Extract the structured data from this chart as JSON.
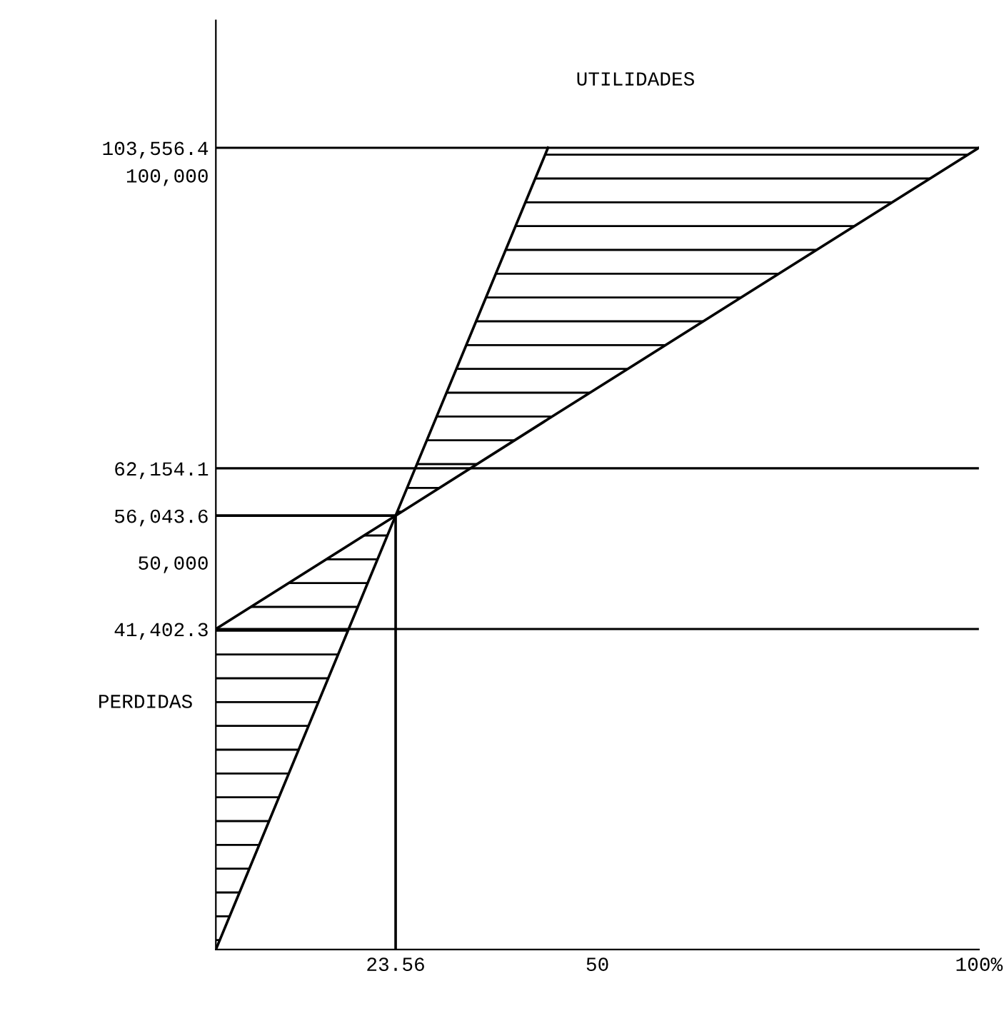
{
  "chart_data": {
    "type": "line",
    "xlim": [
      0,
      100
    ],
    "ylim": [
      0,
      120000
    ],
    "xticks": [
      {
        "value": 23.56,
        "label": "23.56"
      },
      50,
      {
        "value": 100,
        "label": "100%"
      }
    ],
    "yticks": [
      {
        "value": 41402.3,
        "label": "41,402.3"
      },
      {
        "value": 50000,
        "label": "50,000"
      },
      {
        "value": 56043.6,
        "label": "56,043.6"
      },
      {
        "value": 62154.1,
        "label": "62,154.1"
      },
      {
        "value": 100000,
        "label": "100,000"
      },
      {
        "value": 103556.4,
        "label": "103,556.4"
      }
    ],
    "series": [
      {
        "color": "#000000",
        "x": [
          0,
          23.56,
          43.53
        ],
        "values": [
          0,
          56043.6,
          103556.4
        ]
      },
      {
        "color": "#000000",
        "x": [
          0,
          23.56,
          43.53,
          100
        ],
        "values": [
          41402.3,
          56043.6,
          68500,
          103556.4
        ],
        "lower": [
          0,
          56043.6,
          68500,
          103556.4
        ],
        "upper": [
          41402.3,
          56043.6,
          103556.4,
          103556.4
        ]
      },
      {
        "color": "#000000",
        "x": [
          0,
          23.56,
          23.56
        ],
        "values": [
          56043.6,
          56043.6,
          0
        ]
      }
    ],
    "ref_lines": [
      {
        "axis": "y",
        "value": 103556.4,
        "color": "#000000"
      },
      {
        "axis": "y",
        "value": 62154.1,
        "color": "#000000"
      },
      {
        "axis": "y",
        "value": 41402.3,
        "color": "#000000"
      }
    ],
    "annotations": [
      "UTILIDADES",
      "PERDIDAS"
    ],
    "grid": false,
    "marker": "none",
    "line_style": "solid"
  }
}
